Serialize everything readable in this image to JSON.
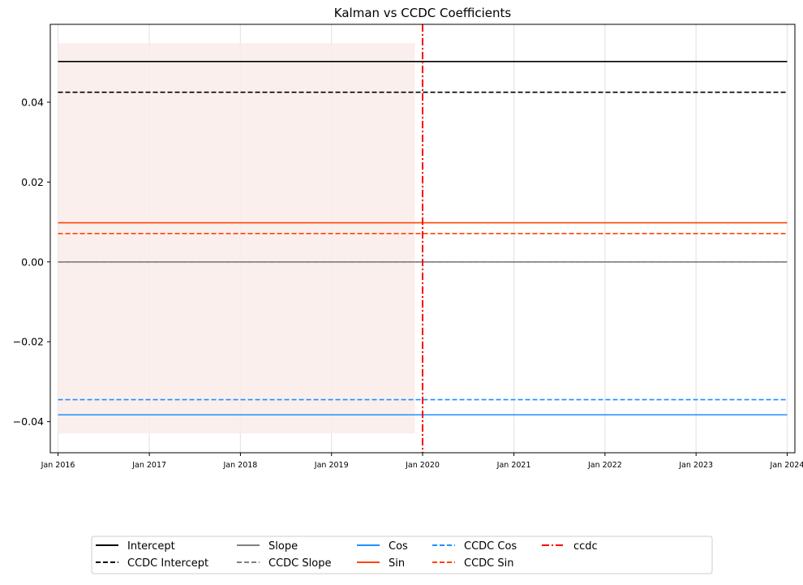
{
  "chart_data": {
    "type": "line",
    "title": "Kalman vs CCDC Coefficients",
    "xlabel": "",
    "ylabel": "",
    "x_type": "date",
    "xlim": [
      "2015-12-01",
      "2024-02-01"
    ],
    "ylim": [
      -0.0478,
      0.0595
    ],
    "xticks": [
      {
        "date": "2016-01-01",
        "label": "Jan 2016"
      },
      {
        "date": "2017-01-01",
        "label": "Jan 2017"
      },
      {
        "date": "2018-01-01",
        "label": "Jan 2018"
      },
      {
        "date": "2019-01-01",
        "label": "Jan 2019"
      },
      {
        "date": "2020-01-01",
        "label": "Jan 2020"
      },
      {
        "date": "2021-01-01",
        "label": "Jan 2021"
      },
      {
        "date": "2022-01-01",
        "label": "Jan 2022"
      },
      {
        "date": "2023-01-01",
        "label": "Jan 2023"
      },
      {
        "date": "2024-01-01",
        "label": "Jan 2024"
      }
    ],
    "yticks": [
      {
        "value": 0.04,
        "label": "0.04"
      },
      {
        "value": 0.02,
        "label": "0.02"
      },
      {
        "value": 0.0,
        "label": "0.00"
      },
      {
        "value": -0.02,
        "label": "−0.02"
      },
      {
        "value": -0.04,
        "label": "−0.04"
      }
    ],
    "grid": "vertical",
    "shaded_region": {
      "x": [
        "2016-01-01",
        "2019-12-01"
      ],
      "y": [
        -0.043,
        0.0548
      ],
      "color": "#f9ecea"
    },
    "series": [
      {
        "name": "Intercept",
        "color": "#000000",
        "style": "solid",
        "x": [
          "2016-01-01",
          "2024-01-01"
        ],
        "y": [
          0.0502,
          0.0502
        ]
      },
      {
        "name": "CCDC Intercept",
        "color": "#000000",
        "style": "dashed",
        "x": [
          "2016-01-01",
          "2024-01-01"
        ],
        "y": [
          0.0425,
          0.0425
        ]
      },
      {
        "name": "Slope",
        "color": "#808080",
        "style": "solid",
        "x": [
          "2016-01-01",
          "2024-01-01"
        ],
        "y": [
          0.0,
          0.0
        ]
      },
      {
        "name": "CCDC Slope",
        "color": "#808080",
        "style": "dashed",
        "x": [
          "2016-01-01",
          "2024-01-01"
        ],
        "y": [
          0.0,
          0.0
        ]
      },
      {
        "name": "Cos",
        "color": "#1e90ff",
        "style": "solid",
        "x": [
          "2016-01-01",
          "2024-01-01"
        ],
        "y": [
          -0.0383,
          -0.0383
        ]
      },
      {
        "name": "Sin",
        "color": "#ff4500",
        "style": "solid",
        "x": [
          "2016-01-01",
          "2024-01-01"
        ],
        "y": [
          0.0098,
          0.0098
        ]
      },
      {
        "name": "CCDC Cos",
        "color": "#1e90ff",
        "style": "dashed",
        "x": [
          "2016-01-01",
          "2024-01-01"
        ],
        "y": [
          -0.0345,
          -0.0345
        ]
      },
      {
        "name": "CCDC Sin",
        "color": "#ff4500",
        "style": "dashed",
        "x": [
          "2016-01-01",
          "2024-01-01"
        ],
        "y": [
          0.0071,
          0.0071
        ]
      }
    ],
    "vlines": [
      {
        "name": "ccdc",
        "color": "#ff0000",
        "style": "dashdot",
        "x": "2020-01-01"
      }
    ],
    "legend": {
      "placement": "bottom-center",
      "columns": 6,
      "entries": [
        {
          "label": "Intercept",
          "color": "#000000",
          "style": "solid"
        },
        {
          "label": "CCDC Intercept",
          "color": "#000000",
          "style": "dashed"
        },
        {
          "label": "Slope",
          "color": "#808080",
          "style": "solid"
        },
        {
          "label": "CCDC Slope",
          "color": "#808080",
          "style": "dashed"
        },
        {
          "label": "Cos",
          "color": "#1e90ff",
          "style": "solid"
        },
        {
          "label": "Sin",
          "color": "#ff4500",
          "style": "solid"
        },
        {
          "label": "CCDC Cos",
          "color": "#1e90ff",
          "style": "dashed"
        },
        {
          "label": "CCDC Sin",
          "color": "#ff4500",
          "style": "dashed"
        },
        {
          "label": "ccdc",
          "color": "#ff0000",
          "style": "dashdot"
        }
      ]
    }
  }
}
